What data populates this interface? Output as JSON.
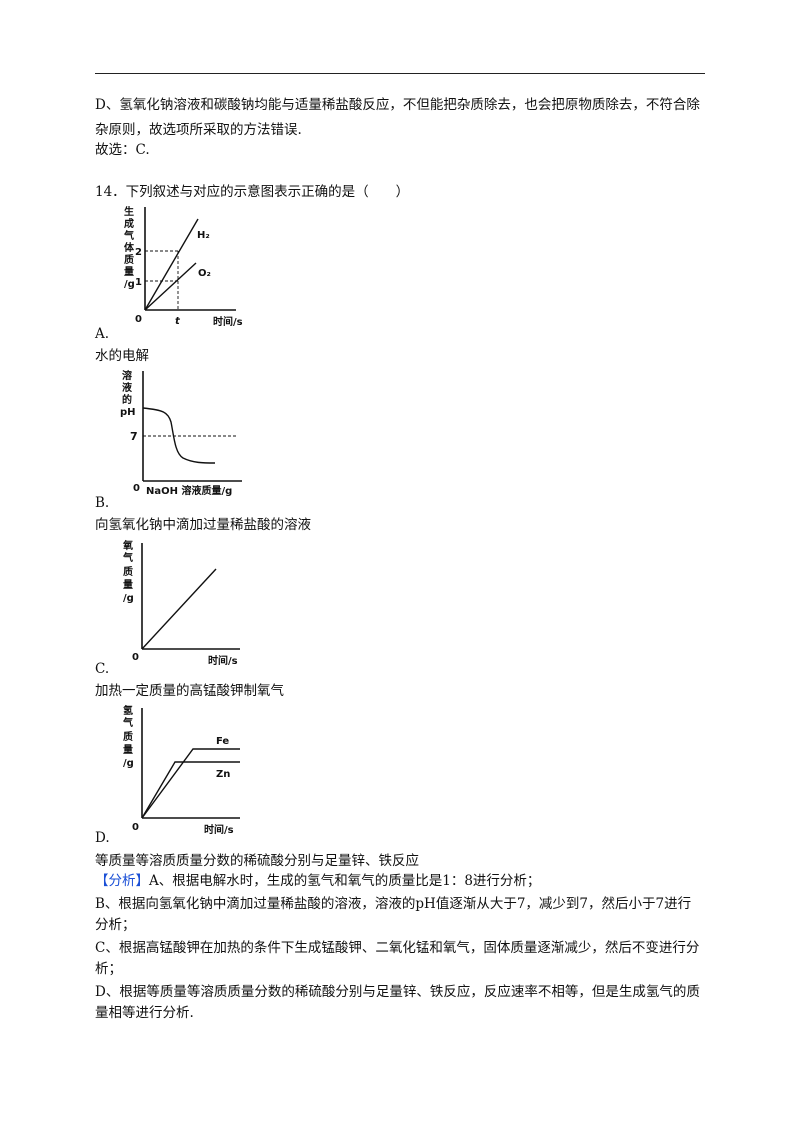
{
  "lines": {
    "d_option_1": "D、氢氧化钠溶液和碳酸钠均能与适量稀盐酸反应，不但能把杂质除去，也会把原物质除去，不符合除",
    "d_option_2": "杂原则，故选项所采取的方法错误.",
    "answer": "故选：C.",
    "q14": "14．下列叙述与对应的示意图表示正确的是（　　）"
  },
  "options": {
    "a": {
      "letter": "A.",
      "caption": "水的电解"
    },
    "b": {
      "letter": "B.",
      "caption": "向氢氧化钠中滴加过量稀盐酸的溶液"
    },
    "c": {
      "letter": "C.",
      "caption": "加热一定质量的高锰酸钾制氧气"
    },
    "d": {
      "letter": "D.",
      "caption": "等质量等溶质质量分数的稀硫酸分别与足量锌、铁反应"
    }
  },
  "analysis": {
    "tag": "【分析】",
    "line1": "A、根据电解水时，生成的氢气和氧气的质量比是1：8进行分析；",
    "line2": "B、根据向氢氧化钠中滴加过量稀盐酸的溶液，溶液的pH值逐渐从大于7，减少到7，然后小于7进行",
    "line3": "分析；",
    "line4": "C、根据高锰酸钾在加热的条件下生成锰酸钾、二氧化锰和氧气，固体质量逐渐减少，然后不变进行分",
    "line5": "析；",
    "line6": "D、根据等质量等溶质质量分数的稀硫酸分别与足量锌、铁反应，反应速率不相等，但是生成氢气的质",
    "line7": "量相等进行分析."
  },
  "graphs": {
    "a": {
      "ylabel": [
        "生",
        "成",
        "气",
        "体",
        "质",
        "量",
        "/g"
      ],
      "xlabel": "时间/s",
      "origin": "0",
      "ticks": [
        "2",
        "1"
      ],
      "xtick": "t",
      "series": [
        "H₂",
        "O₂"
      ]
    },
    "b": {
      "ylabel": [
        "溶",
        "液",
        "的",
        "pH"
      ],
      "xlabel": "NaOH 溶液质量/g",
      "origin": "0",
      "ref": "7"
    },
    "c": {
      "ylabel": [
        "氧",
        "气",
        "质",
        "量",
        "/g"
      ],
      "xlabel": "时间/s",
      "origin": "0"
    },
    "d": {
      "ylabel": [
        "氢",
        "气",
        "质",
        "量",
        "/g"
      ],
      "xlabel": "时间/s",
      "origin": "0",
      "series": [
        "Fe",
        "Zn"
      ]
    }
  }
}
